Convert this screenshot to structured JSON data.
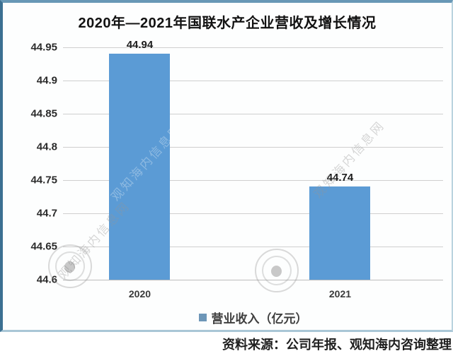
{
  "chart_data": {
    "type": "bar",
    "title": "2020年—2021年国联水产企业营收及增长情况",
    "categories": [
      "2020",
      "2021"
    ],
    "series": [
      {
        "name": "营业收入（亿元）",
        "values": [
          44.94,
          44.74
        ]
      }
    ],
    "value_labels": [
      "44.94",
      "44.74"
    ],
    "yticks": [
      "44.95",
      "44.9",
      "44.85",
      "44.8",
      "44.75",
      "44.7",
      "44.65",
      "44.6"
    ],
    "ylim": [
      44.6,
      44.95
    ],
    "ytick_step": 0.05,
    "grid": true,
    "legend_position": "bottom",
    "bar_color": "#5b9bd5",
    "xlabel": "",
    "ylabel": ""
  },
  "legend": {
    "marker_color": "#6d96b8"
  },
  "source": {
    "text": "资料来源：公司年报、观知海内咨询整理"
  },
  "watermark": {
    "text": "观知海内信息网",
    "stamp_name": "circular-logo-stamp"
  }
}
